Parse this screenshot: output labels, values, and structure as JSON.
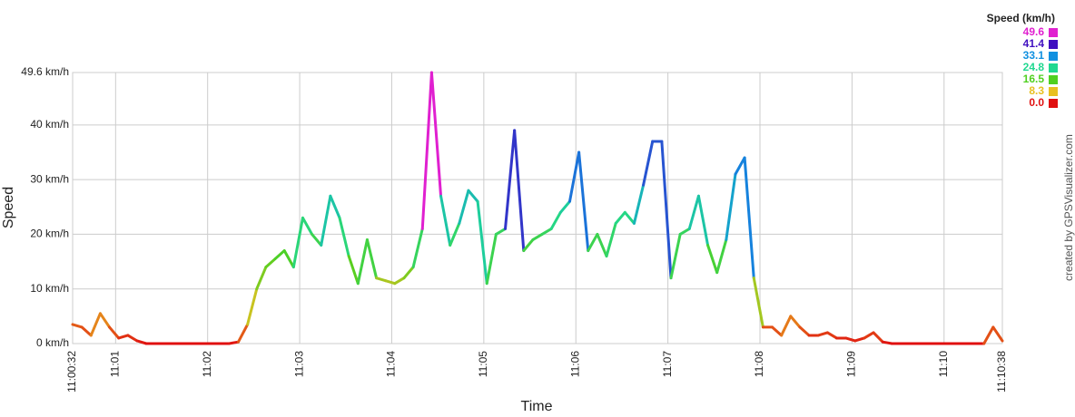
{
  "chart_data": {
    "type": "line",
    "y_label": "Speed",
    "x_label": "Time",
    "credit": "created by GPSVisualizer.com",
    "x": [
      "11:00:32",
      "11:00:38",
      "11:00:44",
      "11:00:50",
      "11:00:56",
      "11:01:02",
      "11:01:08",
      "11:01:14",
      "11:01:20",
      "11:01:26",
      "11:01:32",
      "11:01:38",
      "11:01:44",
      "11:01:50",
      "11:01:56",
      "11:02:02",
      "11:02:08",
      "11:02:14",
      "11:02:20",
      "11:02:26",
      "11:02:32",
      "11:02:38",
      "11:02:44",
      "11:02:50",
      "11:02:56",
      "11:03:02",
      "11:03:08",
      "11:03:14",
      "11:03:20",
      "11:03:26",
      "11:03:32",
      "11:03:38",
      "11:03:44",
      "11:03:50",
      "11:03:56",
      "11:04:02",
      "11:04:08",
      "11:04:14",
      "11:04:20",
      "11:04:26",
      "11:04:32",
      "11:04:38",
      "11:04:44",
      "11:04:50",
      "11:04:56",
      "11:05:02",
      "11:05:08",
      "11:05:14",
      "11:05:20",
      "11:05:26",
      "11:05:32",
      "11:05:38",
      "11:05:44",
      "11:05:50",
      "11:05:56",
      "11:06:02",
      "11:06:08",
      "11:06:14",
      "11:06:20",
      "11:06:26",
      "11:06:32",
      "11:06:38",
      "11:06:44",
      "11:06:50",
      "11:06:56",
      "11:07:02",
      "11:07:08",
      "11:07:14",
      "11:07:20",
      "11:07:26",
      "11:07:32",
      "11:07:38",
      "11:07:44",
      "11:07:50",
      "11:07:56",
      "11:08:02",
      "11:08:08",
      "11:08:14",
      "11:08:20",
      "11:08:26",
      "11:08:32",
      "11:08:38",
      "11:08:44",
      "11:08:50",
      "11:08:56",
      "11:09:02",
      "11:09:08",
      "11:09:14",
      "11:09:20",
      "11:09:26",
      "11:09:32",
      "11:09:38",
      "11:09:44",
      "11:09:50",
      "11:09:56",
      "11:10:02",
      "11:10:08",
      "11:10:14",
      "11:10:20",
      "11:10:26",
      "11:10:32",
      "11:10:38"
    ],
    "series": [
      {
        "name": "Speed",
        "values": [
          3.5,
          3,
          1.5,
          5.5,
          3,
          1,
          1.5,
          0.5,
          0,
          0,
          0,
          0,
          0,
          0,
          0,
          0,
          0,
          0,
          0.3,
          3.5,
          10,
          14,
          15.5,
          17,
          14,
          23,
          20,
          18,
          27,
          23,
          16,
          11,
          19,
          12,
          11.5,
          11,
          12,
          14,
          21,
          49.6,
          27,
          18,
          22,
          28,
          26,
          11,
          20,
          21,
          39,
          17,
          19,
          20,
          21,
          24,
          26,
          35,
          17,
          20,
          16,
          22,
          24,
          22,
          29,
          37,
          37,
          12,
          20,
          21,
          27,
          18,
          13,
          19,
          31,
          34,
          12,
          3,
          3,
          1.5,
          5,
          3,
          1.5,
          1.5,
          2,
          1,
          1,
          0.5,
          1,
          2,
          0.3,
          0,
          0,
          0,
          0,
          0,
          0,
          0,
          0,
          0,
          0,
          0,
          3,
          0.5
        ]
      }
    ],
    "xlim": [
      "11:00:32",
      "11:10:38"
    ],
    "xticks": [
      "11:00:32",
      "11:01",
      "11:02",
      "11:03",
      "11:04",
      "11:05",
      "11:06",
      "11:07",
      "11:08",
      "11:09",
      "11:10",
      "11:10:38"
    ],
    "ylim": [
      0,
      49.6
    ],
    "yticks": [
      {
        "value": 0,
        "label": "0 km/h"
      },
      {
        "value": 10,
        "label": "10 km/h"
      },
      {
        "value": 20,
        "label": "20 km/h"
      },
      {
        "value": 30,
        "label": "30 km/h"
      },
      {
        "value": 40,
        "label": "40 km/h"
      },
      {
        "value": 49.6,
        "label": "49.6 km/h"
      }
    ],
    "grid": true,
    "color_scale": {
      "title": "Speed (km/h)",
      "values": [
        49.6,
        41.4,
        33.1,
        24.8,
        16.5,
        8.3,
        0
      ],
      "value_labels": [
        "49.6",
        "41.4",
        "33.1",
        "24.8",
        "16.5",
        "8.3",
        "0.0"
      ],
      "colors": [
        "#e020d0",
        "#4010c0",
        "#1090e0",
        "#20d890",
        "#50d020",
        "#e8c020",
        "#e01010"
      ]
    }
  }
}
